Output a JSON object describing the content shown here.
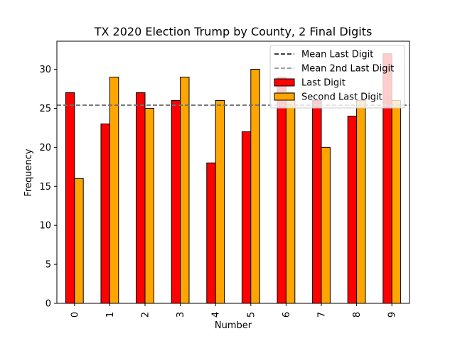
{
  "chart_data": {
    "type": "bar",
    "title": "TX 2020 Election Trump by County, 2 Final Digits",
    "xlabel": "Number",
    "ylabel": "Frequency",
    "categories": [
      "0",
      "1",
      "2",
      "3",
      "4",
      "5",
      "6",
      "7",
      "8",
      "9"
    ],
    "ylim": [
      0,
      33.6
    ],
    "yticks": [
      0,
      5,
      10,
      15,
      20,
      25,
      30
    ],
    "series": [
      {
        "name": "Last Digit",
        "color": "#ff0000",
        "values": [
          27,
          23,
          27,
          26,
          18,
          22,
          29,
          26,
          24,
          32
        ]
      },
      {
        "name": "Second Last Digit",
        "color": "#ffa500",
        "values": [
          16,
          29,
          25,
          29,
          26,
          30,
          27,
          20,
          26,
          26
        ]
      }
    ],
    "reference_lines": [
      {
        "name": "Mean Last Digit",
        "value": 25.4,
        "color": "#000000",
        "style": "dashed"
      },
      {
        "name": "Mean 2nd Last Digit",
        "value": 25.4,
        "color": "#808080",
        "style": "dashed"
      }
    ],
    "legend_position": "top-right",
    "grid": false
  }
}
